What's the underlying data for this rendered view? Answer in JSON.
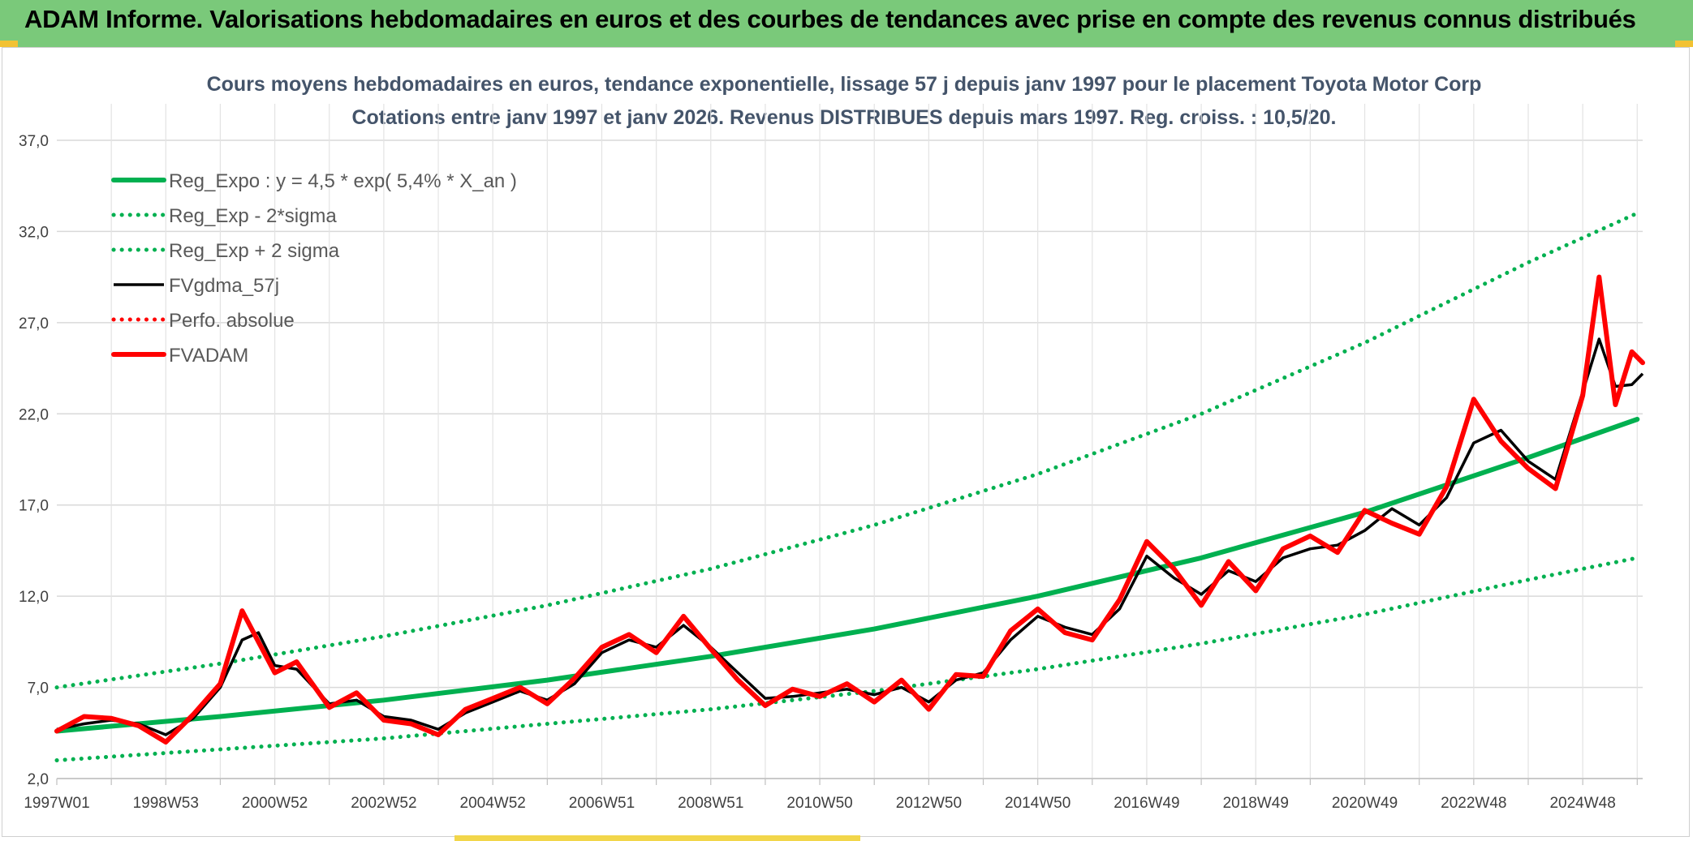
{
  "banner": {
    "title": "ADAM Informe. Valorisations hebdomadaires en euros et des courbes de tendances avec prise en compte des revenus connus distribués",
    "color": "#7ac97a"
  },
  "chart_data": {
    "type": "line",
    "title": "Cours moyens hebdomadaires en euros, tendance exponentielle, lissage 57 j depuis janv 1997 pour le placement Toyota Motor Corp",
    "subtitle": "Cotations entre janv 1997 et janv 2026. Revenus DISTRIBUES depuis mars 1997. Reg. croiss. : 10,5/20.",
    "xlabel": "",
    "ylabel": "",
    "ylim": [
      2.0,
      39.0
    ],
    "yticks": [
      "2,0",
      "7,0",
      "12,0",
      "17,0",
      "22,0",
      "27,0",
      "32,0",
      "37,0"
    ],
    "xlim": [
      1997.0,
      2026.1
    ],
    "xticks": [
      {
        "label": "1997W01",
        "year": 1997.0
      },
      {
        "label": "1998W53",
        "year": 1999.0
      },
      {
        "label": "2000W52",
        "year": 2001.0
      },
      {
        "label": "2002W52",
        "year": 2003.0
      },
      {
        "label": "2004W52",
        "year": 2005.0
      },
      {
        "label": "2006W51",
        "year": 2007.0
      },
      {
        "label": "2008W51",
        "year": 2009.0
      },
      {
        "label": "2010W50",
        "year": 2011.0
      },
      {
        "label": "2012W50",
        "year": 2013.0
      },
      {
        "label": "2014W50",
        "year": 2015.0
      },
      {
        "label": "2016W49",
        "year": 2017.0
      },
      {
        "label": "2018W49",
        "year": 2019.0
      },
      {
        "label": "2020W49",
        "year": 2021.0
      },
      {
        "label": "2022W48",
        "year": 2023.0
      },
      {
        "label": "2024W48",
        "year": 2025.0
      }
    ],
    "grid": true,
    "legend_position": "top-left",
    "series": [
      {
        "name": "Reg_Expo : y = 4,5 * exp( 5,4% *  X_an )",
        "style": "solid-thick",
        "color": "#00b050",
        "points": [
          [
            1997.0,
            4.6
          ],
          [
            2000.0,
            5.4
          ],
          [
            2003.0,
            6.3
          ],
          [
            2006.0,
            7.4
          ],
          [
            2009.0,
            8.7
          ],
          [
            2012.0,
            10.2
          ],
          [
            2015.0,
            12.0
          ],
          [
            2018.0,
            14.1
          ],
          [
            2021.0,
            16.6
          ],
          [
            2024.0,
            19.6
          ],
          [
            2026.0,
            21.7
          ]
        ]
      },
      {
        "name": "Reg_Exp - 2*sigma",
        "style": "dotted",
        "color": "#00b050",
        "points": [
          [
            1997.0,
            3.0
          ],
          [
            2000.0,
            3.6
          ],
          [
            2003.0,
            4.2
          ],
          [
            2006.0,
            5.0
          ],
          [
            2009.0,
            5.8
          ],
          [
            2012.0,
            6.8
          ],
          [
            2015.0,
            8.0
          ],
          [
            2018.0,
            9.4
          ],
          [
            2021.0,
            11.0
          ],
          [
            2024.0,
            12.9
          ],
          [
            2026.0,
            14.1
          ]
        ]
      },
      {
        "name": "Reg_Exp + 2 sigma",
        "style": "dotted",
        "color": "#00b050",
        "points": [
          [
            1997.0,
            7.0
          ],
          [
            2000.0,
            8.3
          ],
          [
            2003.0,
            9.8
          ],
          [
            2006.0,
            11.5
          ],
          [
            2009.0,
            13.5
          ],
          [
            2012.0,
            15.9
          ],
          [
            2015.0,
            18.7
          ],
          [
            2018.0,
            22.0
          ],
          [
            2021.0,
            25.9
          ],
          [
            2024.0,
            30.3
          ],
          [
            2026.0,
            33.0
          ]
        ]
      },
      {
        "name": "FVgdma_57j",
        "style": "solid",
        "color": "#000000",
        "points": [
          [
            1997.0,
            4.7
          ],
          [
            1997.5,
            5.0
          ],
          [
            1998.0,
            5.2
          ],
          [
            1998.5,
            5.0
          ],
          [
            1999.0,
            4.4
          ],
          [
            1999.5,
            5.3
          ],
          [
            2000.0,
            7.0
          ],
          [
            2000.4,
            9.6
          ],
          [
            2000.7,
            10.0
          ],
          [
            2001.0,
            8.2
          ],
          [
            2001.4,
            8.0
          ],
          [
            2002.0,
            6.1
          ],
          [
            2002.5,
            6.3
          ],
          [
            2003.0,
            5.4
          ],
          [
            2003.5,
            5.2
          ],
          [
            2004.0,
            4.7
          ],
          [
            2004.5,
            5.6
          ],
          [
            2005.0,
            6.2
          ],
          [
            2005.5,
            6.8
          ],
          [
            2006.0,
            6.3
          ],
          [
            2006.5,
            7.2
          ],
          [
            2007.0,
            8.9
          ],
          [
            2007.5,
            9.6
          ],
          [
            2008.0,
            9.2
          ],
          [
            2008.5,
            10.4
          ],
          [
            2009.0,
            9.2
          ],
          [
            2009.5,
            7.8
          ],
          [
            2010.0,
            6.4
          ],
          [
            2010.5,
            6.5
          ],
          [
            2011.0,
            6.7
          ],
          [
            2011.5,
            6.9
          ],
          [
            2012.0,
            6.6
          ],
          [
            2012.5,
            7.0
          ],
          [
            2013.0,
            6.2
          ],
          [
            2013.5,
            7.4
          ],
          [
            2014.0,
            7.8
          ],
          [
            2014.5,
            9.6
          ],
          [
            2015.0,
            10.9
          ],
          [
            2015.5,
            10.3
          ],
          [
            2016.0,
            9.9
          ],
          [
            2016.5,
            11.3
          ],
          [
            2017.0,
            14.2
          ],
          [
            2017.5,
            13.0
          ],
          [
            2018.0,
            12.1
          ],
          [
            2018.5,
            13.4
          ],
          [
            2019.0,
            12.8
          ],
          [
            2019.5,
            14.1
          ],
          [
            2020.0,
            14.6
          ],
          [
            2020.5,
            14.8
          ],
          [
            2021.0,
            15.6
          ],
          [
            2021.5,
            16.8
          ],
          [
            2022.0,
            15.9
          ],
          [
            2022.5,
            17.4
          ],
          [
            2023.0,
            20.4
          ],
          [
            2023.5,
            21.1
          ],
          [
            2024.0,
            19.4
          ],
          [
            2024.5,
            18.4
          ],
          [
            2025.0,
            23.2
          ],
          [
            2025.3,
            26.1
          ],
          [
            2025.6,
            23.5
          ],
          [
            2025.9,
            23.6
          ],
          [
            2026.1,
            24.2
          ]
        ]
      },
      {
        "name": "Perfo. absolue",
        "style": "dotted",
        "color": "#ff0000",
        "points": []
      },
      {
        "name": "FVADAM",
        "style": "solid-thick",
        "color": "#ff0000",
        "points": [
          [
            1997.0,
            4.6
          ],
          [
            1997.5,
            5.4
          ],
          [
            1998.0,
            5.3
          ],
          [
            1998.5,
            4.9
          ],
          [
            1999.0,
            4.0
          ],
          [
            1999.5,
            5.5
          ],
          [
            2000.0,
            7.2
          ],
          [
            2000.4,
            11.2
          ],
          [
            2000.7,
            9.5
          ],
          [
            2001.0,
            7.8
          ],
          [
            2001.4,
            8.4
          ],
          [
            2002.0,
            5.9
          ],
          [
            2002.5,
            6.7
          ],
          [
            2003.0,
            5.2
          ],
          [
            2003.5,
            5.0
          ],
          [
            2004.0,
            4.4
          ],
          [
            2004.5,
            5.8
          ],
          [
            2005.0,
            6.4
          ],
          [
            2005.5,
            7.0
          ],
          [
            2006.0,
            6.1
          ],
          [
            2006.5,
            7.5
          ],
          [
            2007.0,
            9.2
          ],
          [
            2007.5,
            9.9
          ],
          [
            2008.0,
            8.9
          ],
          [
            2008.5,
            10.9
          ],
          [
            2009.0,
            9.1
          ],
          [
            2009.5,
            7.4
          ],
          [
            2010.0,
            6.0
          ],
          [
            2010.5,
            6.9
          ],
          [
            2011.0,
            6.5
          ],
          [
            2011.5,
            7.2
          ],
          [
            2012.0,
            6.2
          ],
          [
            2012.5,
            7.4
          ],
          [
            2013.0,
            5.8
          ],
          [
            2013.5,
            7.7
          ],
          [
            2014.0,
            7.6
          ],
          [
            2014.5,
            10.1
          ],
          [
            2015.0,
            11.3
          ],
          [
            2015.5,
            10.0
          ],
          [
            2016.0,
            9.6
          ],
          [
            2016.5,
            11.8
          ],
          [
            2017.0,
            15.0
          ],
          [
            2017.5,
            13.5
          ],
          [
            2018.0,
            11.5
          ],
          [
            2018.5,
            13.9
          ],
          [
            2019.0,
            12.3
          ],
          [
            2019.5,
            14.6
          ],
          [
            2020.0,
            15.3
          ],
          [
            2020.5,
            14.4
          ],
          [
            2021.0,
            16.7
          ],
          [
            2021.5,
            16.0
          ],
          [
            2022.0,
            15.4
          ],
          [
            2022.5,
            18.0
          ],
          [
            2023.0,
            22.8
          ],
          [
            2023.5,
            20.5
          ],
          [
            2024.0,
            19.0
          ],
          [
            2024.5,
            17.9
          ],
          [
            2025.0,
            23.0
          ],
          [
            2025.3,
            29.5
          ],
          [
            2025.6,
            22.5
          ],
          [
            2025.9,
            25.4
          ],
          [
            2026.1,
            24.8
          ]
        ]
      }
    ]
  }
}
